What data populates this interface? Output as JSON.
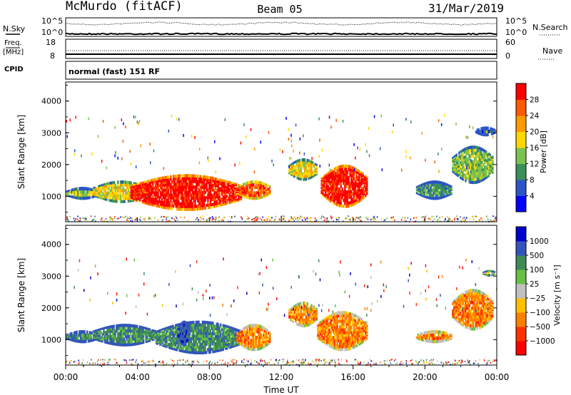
{
  "header": {
    "station": "McMurdo (fitACF)",
    "beam": "Beam 05",
    "date": "31/Mar/2019"
  },
  "strip_labels": {
    "nsky": "N.Sky",
    "freq_line1": "Freq.",
    "freq_line2": "[MHz]",
    "cpid": "CPID",
    "nsearch": "N.Search",
    "nave": "Nave",
    "nsky_top": "10^5",
    "nsky_bottom": "10^0",
    "nsearch_top": "10^5",
    "nsearch_bottom": "10^0",
    "freq_top": "18",
    "freq_bottom": "8",
    "nave_top": "60",
    "nave_bottom": "0",
    "cpid_text": "normal (fast) 151 RF"
  },
  "chart_data": [
    {
      "type": "heatmap",
      "panel": "power",
      "ylabel": "Slant Range [km]",
      "yticks": [
        "1000",
        "2000",
        "3000",
        "4000"
      ],
      "ylim": [
        200,
        4600
      ],
      "xlim": [
        0,
        24
      ],
      "colorbar_label": "Power [dB]",
      "colorbar_ticks": [
        "4",
        "8",
        "12",
        "16",
        "20",
        "24",
        "28"
      ],
      "colorbar_colors": [
        "#0000ff",
        "#2b55c8",
        "#3a8f5a",
        "#7cc24e",
        "#ffd700",
        "#ff9a00",
        "#ff5a00",
        "#ff0000"
      ],
      "regions": [
        {
          "t0": 0.0,
          "t1": 1.8,
          "r0": 900,
          "r1": 1300,
          "level": 3
        },
        {
          "t0": 1.5,
          "t1": 4.6,
          "r0": 800,
          "r1": 1500,
          "level": 4
        },
        {
          "t0": 3.6,
          "t1": 9.8,
          "r0": 550,
          "r1": 1700,
          "level": 7
        },
        {
          "t0": 9.5,
          "t1": 11.4,
          "r0": 900,
          "r1": 1500,
          "level": 6
        },
        {
          "t0": 12.4,
          "t1": 14.0,
          "r0": 1500,
          "r1": 2200,
          "level": 4
        },
        {
          "t0": 14.2,
          "t1": 16.8,
          "r0": 650,
          "r1": 2000,
          "level": 7
        },
        {
          "t0": 19.5,
          "t1": 21.5,
          "r0": 900,
          "r1": 1500,
          "level": 2
        },
        {
          "t0": 21.5,
          "t1": 23.8,
          "r0": 1400,
          "r1": 2600,
          "level": 3
        },
        {
          "t0": 22.8,
          "t1": 23.9,
          "r0": 2900,
          "r1": 3200,
          "level": 1
        }
      ]
    },
    {
      "type": "heatmap",
      "panel": "velocity",
      "ylabel": "Slant Range [km]",
      "yticks": [
        "1000",
        "2000",
        "3000",
        "4000"
      ],
      "ylim": [
        200,
        4600
      ],
      "xlim": [
        0,
        24
      ],
      "colorbar_label": "Velocity [m s⁻¹]",
      "colorbar_ticks": [
        "1000",
        "500",
        "100",
        "25",
        "−25",
        "−100",
        "−500",
        "−1000"
      ],
      "colorbar_colors": [
        "#0000cc",
        "#3355bb",
        "#3f8a55",
        "#66c044",
        "#c0c0c0",
        "#ffc000",
        "#ff8000",
        "#ff3000",
        "#ff0000"
      ],
      "regions": [
        {
          "t0": 0.0,
          "t1": 1.8,
          "r0": 900,
          "r1": 1300,
          "level": 2
        },
        {
          "t0": 1.5,
          "t1": 5.0,
          "r0": 800,
          "r1": 1500,
          "level": 2
        },
        {
          "t0": 5.0,
          "t1": 9.8,
          "r0": 550,
          "r1": 1600,
          "level": 2
        },
        {
          "t0": 6.2,
          "t1": 6.9,
          "r0": 800,
          "r1": 1600,
          "level": 1
        },
        {
          "t0": 9.5,
          "t1": 11.4,
          "r0": 650,
          "r1": 1500,
          "level": 6
        },
        {
          "t0": 12.4,
          "t1": 14.0,
          "r0": 1400,
          "r1": 2200,
          "level": 6
        },
        {
          "t0": 14.0,
          "t1": 16.8,
          "r0": 650,
          "r1": 1900,
          "level": 6
        },
        {
          "t0": 19.5,
          "t1": 21.5,
          "r0": 900,
          "r1": 1300,
          "level": 6
        },
        {
          "t0": 21.5,
          "t1": 23.8,
          "r0": 1300,
          "r1": 2600,
          "level": 6
        },
        {
          "t0": 23.2,
          "t1": 23.9,
          "r0": 3000,
          "r1": 3200,
          "level": 4
        }
      ]
    }
  ],
  "xaxis": {
    "title": "Time UT",
    "ticks": [
      "00:00",
      "04:00",
      "08:00",
      "12:00",
      "16:00",
      "20:00",
      "00:00"
    ]
  }
}
